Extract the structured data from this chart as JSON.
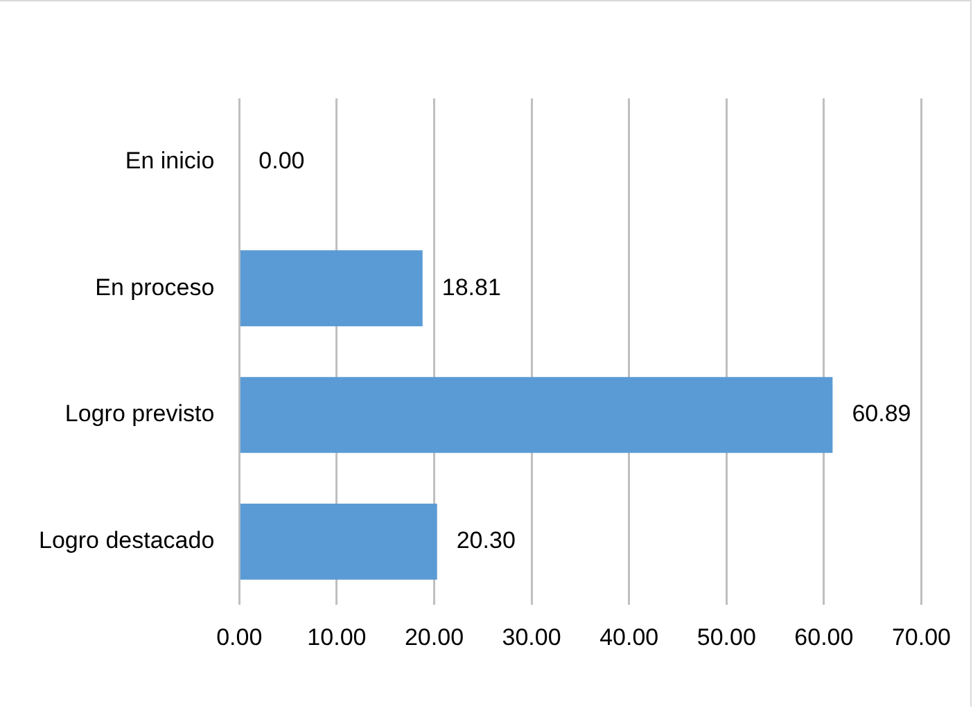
{
  "chart_data": {
    "type": "bar",
    "orientation": "horizontal",
    "categories": [
      "En inicio",
      "En proceso",
      "Logro previsto",
      "Logro destacado"
    ],
    "values": [
      0,
      18.81,
      60.89,
      20.3
    ],
    "value_labels": [
      "0.00",
      "18.81",
      "60.89",
      "20.30"
    ],
    "color": "#5b9bd5",
    "xlim": [
      0,
      70
    ],
    "xticks": [
      {
        "value": 0,
        "label": "0.00"
      },
      {
        "value": 10,
        "label": "10.00"
      },
      {
        "value": 20,
        "label": "20.00"
      },
      {
        "value": 30,
        "label": "30.00"
      },
      {
        "value": 40,
        "label": "40.00"
      },
      {
        "value": 50,
        "label": "50.00"
      },
      {
        "value": 60,
        "label": "60.00"
      },
      {
        "value": 70,
        "label": "70.00"
      }
    ],
    "grid": "x"
  }
}
